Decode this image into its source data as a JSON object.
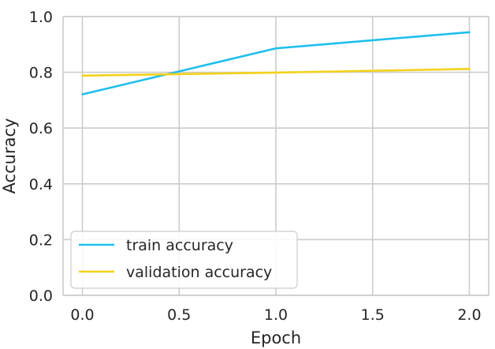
{
  "chart_data": {
    "type": "line",
    "x": [
      0,
      1,
      2
    ],
    "series": [
      {
        "name": "train accuracy",
        "color": "#1fbfee",
        "values": [
          0.721,
          0.886,
          0.944
        ]
      },
      {
        "name": "validation accuracy",
        "color": "#f4d21a",
        "values": [
          0.788,
          0.799,
          0.812
        ]
      }
    ],
    "xlabel": "Epoch",
    "ylabel": "Accuracy",
    "xlim": [
      -0.1,
      2.1
    ],
    "ylim": [
      0.0,
      1.0
    ],
    "xticks": [
      0.0,
      0.5,
      1.0,
      1.5,
      2.0
    ],
    "xtick_labels": [
      "0.0",
      "0.5",
      "1.0",
      "1.5",
      "2.0"
    ],
    "yticks": [
      0.0,
      0.2,
      0.4,
      0.6,
      0.8,
      1.0
    ],
    "ytick_labels": [
      "0.0",
      "0.2",
      "0.4",
      "0.6",
      "0.8",
      "1.0"
    ],
    "grid": true,
    "legend_position": "lower-left"
  }
}
